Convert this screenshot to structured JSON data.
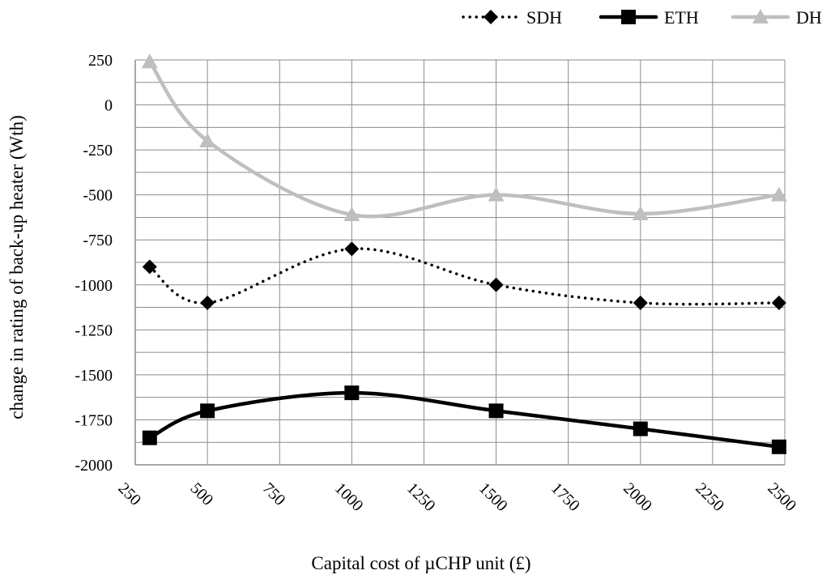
{
  "chart_data": {
    "type": "line",
    "title": "",
    "xlabel": "Capital cost of µCHP unit (£)",
    "ylabel": "change in rating of back-up heater (Wth)",
    "x_ticks": [
      "250",
      "500",
      "750",
      "1000",
      "1250",
      "1500",
      "1750",
      "2000",
      "2250",
      "2500"
    ],
    "y_ticks": [
      "250",
      "0",
      "-250",
      "-500",
      "-750",
      "-1000",
      "-1250",
      "-1500",
      "-1750",
      "-2000"
    ],
    "xlim": [
      250,
      2500
    ],
    "ylim": [
      -2000,
      250
    ],
    "grid": true,
    "legend_position": "top-right",
    "series": [
      {
        "name": "SDH",
        "style": "dotted",
        "marker": "diamond",
        "color": "#000000",
        "points": [
          [
            300,
            -900
          ],
          [
            500,
            -1100
          ],
          [
            1000,
            -800
          ],
          [
            1500,
            -1000
          ],
          [
            2000,
            -1100
          ],
          [
            2480,
            -1100
          ]
        ]
      },
      {
        "name": "ETH",
        "style": "solid",
        "marker": "square",
        "color": "#000000",
        "points": [
          [
            300,
            -1850
          ],
          [
            500,
            -1700
          ],
          [
            1000,
            -1600
          ],
          [
            1500,
            -1700
          ],
          [
            2000,
            -1800
          ],
          [
            2480,
            -1900
          ]
        ]
      },
      {
        "name": "DH",
        "style": "solid",
        "marker": "triangle",
        "color": "#bfbfbf",
        "points": [
          [
            300,
            240
          ],
          [
            500,
            -200
          ],
          [
            1000,
            -610
          ],
          [
            1500,
            -500
          ],
          [
            2000,
            -605
          ],
          [
            2480,
            -500
          ]
        ]
      }
    ]
  }
}
